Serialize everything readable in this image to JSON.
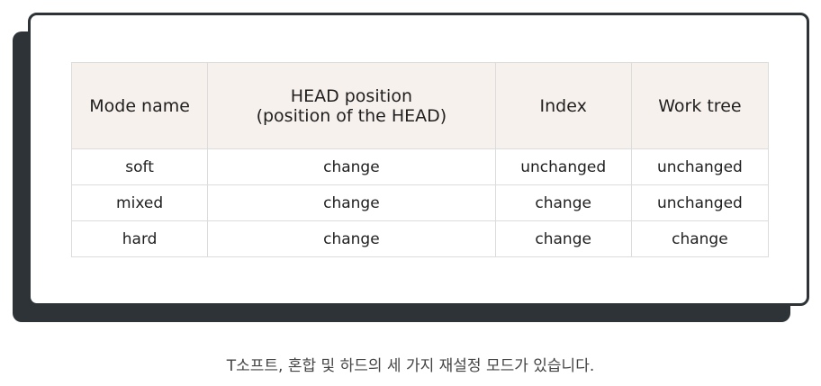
{
  "table": {
    "headers": {
      "mode_name": "Mode name",
      "head_position_line1": "HEAD position",
      "head_position_line2": "(position of the HEAD)",
      "index": "Index",
      "work_tree": "Work tree"
    },
    "rows": [
      {
        "mode": "soft",
        "head": "change",
        "index": "unchanged",
        "work_tree": "unchanged"
      },
      {
        "mode": "mixed",
        "head": "change",
        "index": "change",
        "work_tree": "unchanged"
      },
      {
        "mode": "hard",
        "head": "change",
        "index": "change",
        "work_tree": "change"
      }
    ]
  },
  "caption": "T소프트, 혼합 및 하드의 세 가지 재설정 모드가 있습니다.",
  "colors": {
    "header_background": "#f7f1ee",
    "card_border": "#2d3336",
    "card_shadow": "#2d3336",
    "cell_border": "#dcdcdc"
  }
}
